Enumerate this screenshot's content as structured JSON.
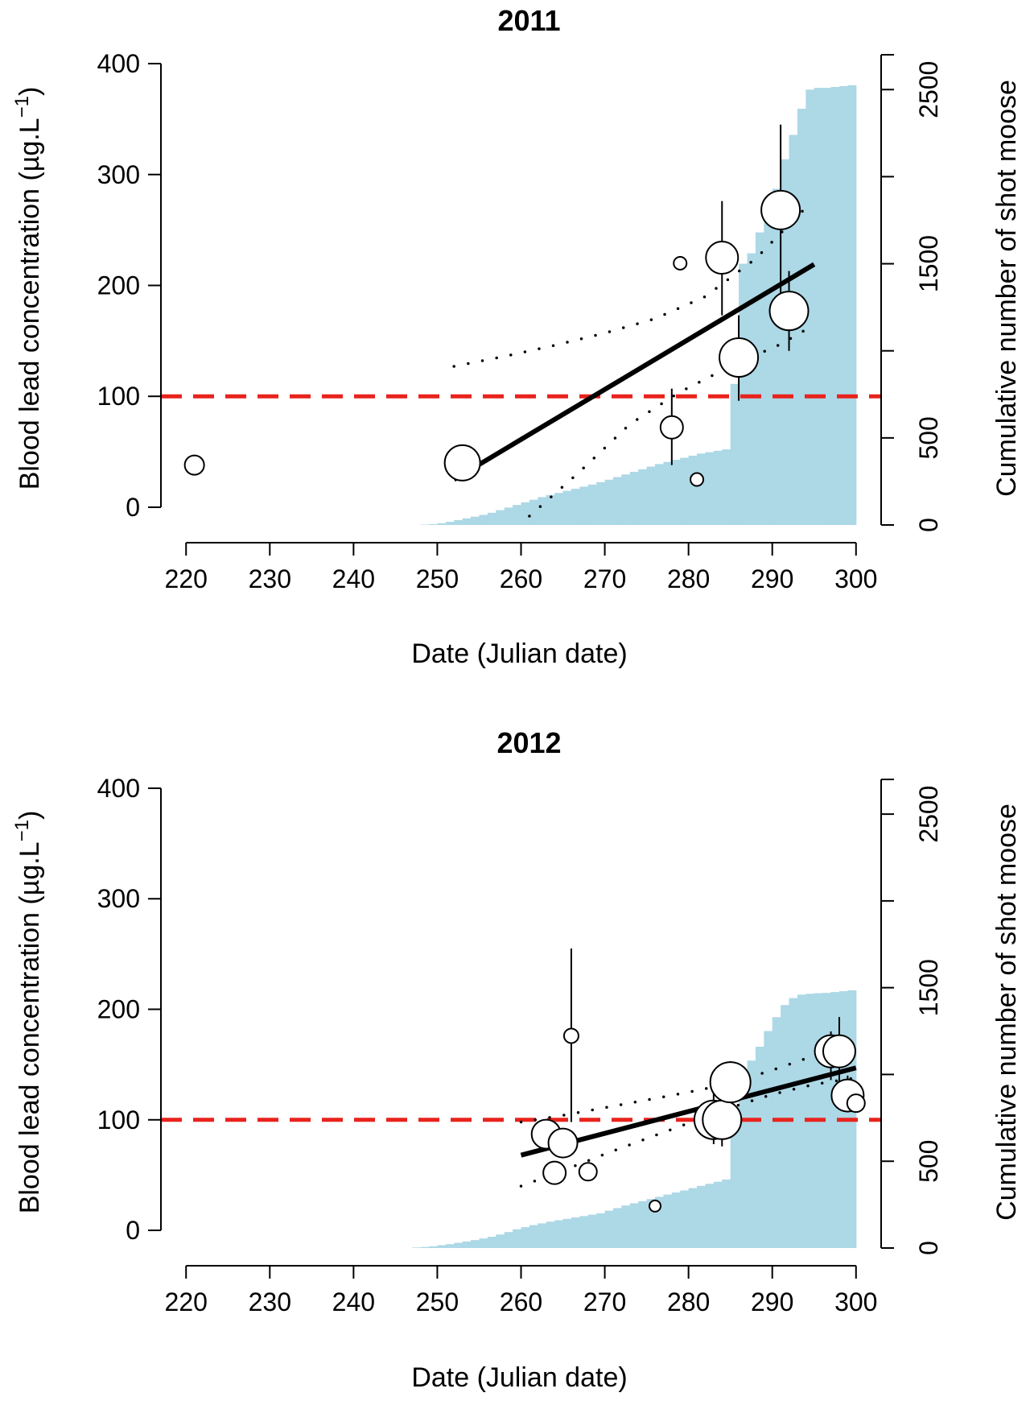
{
  "chart_data": [
    {
      "type": "scatter",
      "title": "2011",
      "xlabel": "Date (Julian date)",
      "ylabel": "Blood lead concentration (µg.L",
      "ylabel_sup": "−1",
      "ylabel_close": ")",
      "y2label": "Cumulative number of shot moose",
      "xlim": [
        217,
        303
      ],
      "ylim": [
        -16,
        408
      ],
      "y2lim": [
        0,
        2700
      ],
      "xticks": [
        220,
        230,
        240,
        250,
        260,
        270,
        280,
        290,
        300
      ],
      "yticks": [
        0,
        100,
        200,
        300,
        400
      ],
      "y2ticks": [
        0,
        500,
        1000,
        1500,
        2000,
        2500
      ],
      "y2ticks_labeled": [
        0,
        500,
        1500,
        2500
      ],
      "threshold": 100,
      "grid": false,
      "colors": {
        "bars": "#add8e6",
        "threshold": "#e8231c",
        "line": "#000000"
      },
      "points": [
        {
          "x": 221,
          "y": 38,
          "size": 12,
          "lo": 31,
          "hi": 45
        },
        {
          "x": 253,
          "y": 40,
          "size": 22,
          "lo": 40,
          "hi": 40
        },
        {
          "x": 278,
          "y": 72,
          "size": 14,
          "lo": 38,
          "hi": 107
        },
        {
          "x": 279,
          "y": 220,
          "size": 8,
          "lo": 220,
          "hi": 220
        },
        {
          "x": 281,
          "y": 25,
          "size": 8,
          "lo": 25,
          "hi": 25
        },
        {
          "x": 284,
          "y": 225,
          "size": 20,
          "lo": 173,
          "hi": 276
        },
        {
          "x": 286,
          "y": 135,
          "size": 24,
          "lo": 96,
          "hi": 173
        },
        {
          "x": 291,
          "y": 268,
          "size": 24,
          "lo": 192,
          "hi": 345
        },
        {
          "x": 292,
          "y": 177,
          "size": 24,
          "lo": 141,
          "hi": 213
        }
      ],
      "fit": {
        "x": [
          252,
          295
        ],
        "y": [
          25,
          219
        ]
      },
      "ci_upper": {
        "x": [
          252,
          258,
          264,
          270,
          276,
          282,
          288,
          294
        ],
        "y": [
          127,
          136,
          146,
          157,
          170,
          190,
          224,
          270
        ]
      },
      "ci_lower": {
        "x": [
          261,
          267,
          273,
          279,
          285,
          291,
          294
        ],
        "y": [
          -8,
          32,
          75,
          104,
          127,
          147,
          160
        ]
      },
      "cumulative": {
        "x": [
          249,
          250,
          251,
          252,
          253,
          254,
          255,
          256,
          257,
          258,
          259,
          260,
          261,
          262,
          263,
          264,
          265,
          266,
          267,
          268,
          269,
          270,
          271,
          272,
          273,
          274,
          275,
          276,
          277,
          278,
          279,
          280,
          281,
          282,
          283,
          284,
          285,
          286,
          287,
          288,
          289,
          290,
          291,
          292,
          293,
          294,
          295,
          296,
          297,
          298,
          299,
          300
        ],
        "y": [
          2,
          5,
          10,
          18,
          28,
          38,
          48,
          58,
          70,
          85,
          100,
          115,
          130,
          145,
          160,
          172,
          184,
          196,
          208,
          220,
          232,
          246,
          260,
          275,
          290,
          305,
          320,
          335,
          350,
          362,
          374,
          386,
          398,
          410,
          418,
          426,
          434,
          810,
          1500,
          1560,
          1680,
          1790,
          1930,
          2100,
          2240,
          2390,
          2500,
          2510,
          2510,
          2515,
          2520,
          2525
        ]
      }
    },
    {
      "type": "scatter",
      "title": "2012",
      "xlabel": "Date (Julian date)",
      "ylabel": "Blood lead concentration (µg.L",
      "ylabel_sup": "−1",
      "ylabel_close": ")",
      "y2label": "Cumulative number of shot moose",
      "xlim": [
        217,
        303
      ],
      "ylim": [
        -16,
        408
      ],
      "y2lim": [
        0,
        2700
      ],
      "xticks": [
        220,
        230,
        240,
        250,
        260,
        270,
        280,
        290,
        300
      ],
      "yticks": [
        0,
        100,
        200,
        300,
        400
      ],
      "y2ticks": [
        0,
        500,
        1000,
        1500,
        2000,
        2500
      ],
      "y2ticks_labeled": [
        0,
        500,
        1500,
        2500
      ],
      "threshold": 100,
      "grid": false,
      "colors": {
        "bars": "#add8e6",
        "threshold": "#e8231c",
        "line": "#000000"
      },
      "points": [
        {
          "x": 263,
          "y": 87,
          "size": 18,
          "lo": 87,
          "hi": 87
        },
        {
          "x": 264,
          "y": 52,
          "size": 14,
          "lo": 44,
          "hi": 60
        },
        {
          "x": 265,
          "y": 79,
          "size": 18,
          "lo": 79,
          "hi": 79
        },
        {
          "x": 266,
          "y": 176,
          "size": 9,
          "lo": 98,
          "hi": 255
        },
        {
          "x": 268,
          "y": 53,
          "size": 11,
          "lo": 53,
          "hi": 53
        },
        {
          "x": 276,
          "y": 22,
          "size": 7,
          "lo": 22,
          "hi": 22
        },
        {
          "x": 283,
          "y": 100,
          "size": 24,
          "lo": 78,
          "hi": 124
        },
        {
          "x": 284,
          "y": 100,
          "size": 24,
          "lo": 76,
          "hi": 124
        },
        {
          "x": 285,
          "y": 134,
          "size": 25,
          "lo": 115,
          "hi": 153
        },
        {
          "x": 297,
          "y": 162,
          "size": 20,
          "lo": 136,
          "hi": 180
        },
        {
          "x": 298,
          "y": 162,
          "size": 20,
          "lo": 133,
          "hi": 193
        },
        {
          "x": 299,
          "y": 122,
          "size": 20,
          "lo": 108,
          "hi": 140
        },
        {
          "x": 300,
          "y": 115,
          "size": 11,
          "lo": 115,
          "hi": 115
        }
      ],
      "fit": {
        "x": [
          260,
          300
        ],
        "y": [
          68,
          147
        ]
      },
      "ci_upper": {
        "x": [
          260,
          265,
          270,
          275,
          280,
          285,
          290,
          295,
          300
        ],
        "y": [
          98,
          104,
          111,
          118,
          125,
          133,
          145,
          158,
          173
        ]
      },
      "ci_lower": {
        "x": [
          260,
          265,
          270,
          275,
          280,
          285,
          290,
          295,
          300
        ],
        "y": [
          40,
          54,
          69,
          83,
          97,
          111,
          123,
          132,
          138
        ]
      },
      "cumulative": {
        "x": [
          248,
          249,
          250,
          251,
          252,
          253,
          254,
          255,
          256,
          257,
          258,
          259,
          260,
          261,
          262,
          263,
          264,
          265,
          266,
          267,
          268,
          269,
          270,
          271,
          272,
          273,
          274,
          275,
          276,
          277,
          278,
          279,
          280,
          281,
          282,
          283,
          284,
          285,
          286,
          287,
          288,
          289,
          290,
          291,
          292,
          293,
          294,
          295,
          296,
          297,
          298,
          299,
          300
        ],
        "y": [
          3,
          6,
          10,
          16,
          22,
          30,
          38,
          46,
          55,
          65,
          78,
          92,
          108,
          120,
          132,
          142,
          152,
          160,
          168,
          176,
          184,
          192,
          200,
          215,
          230,
          245,
          258,
          270,
          282,
          295,
          308,
          320,
          332,
          345,
          358,
          370,
          382,
          395,
          815,
          1010,
          1080,
          1160,
          1250,
          1330,
          1400,
          1440,
          1460,
          1465,
          1468,
          1470,
          1475,
          1480,
          1485
        ]
      }
    }
  ]
}
